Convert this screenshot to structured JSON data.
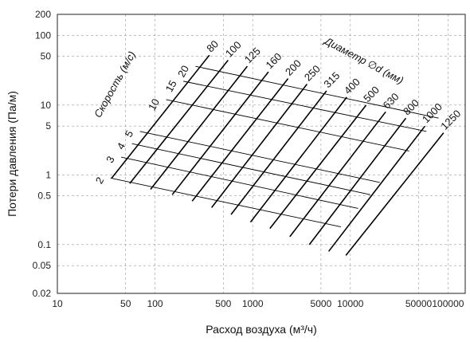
{
  "chart_data": {
    "type": "line",
    "xlabel": "Расход воздуха (м³/ч)",
    "ylabel": "Потери давления (Па/м)",
    "xscale": "log",
    "yscale": "log",
    "xlim": [
      10,
      150000
    ],
    "ylim": [
      0.02,
      200
    ],
    "grid": true,
    "x_ticks": [
      {
        "value": 10,
        "label": "10"
      },
      {
        "value": 50,
        "label": "50"
      },
      {
        "value": 100,
        "label": "100"
      },
      {
        "value": 500,
        "label": "500"
      },
      {
        "value": 1000,
        "label": "1000"
      },
      {
        "value": 5000,
        "label": "5000"
      },
      {
        "value": 10000,
        "label": "10000"
      },
      {
        "value": 50000,
        "label": "50000"
      },
      {
        "value": 100000,
        "label": "100000"
      }
    ],
    "y_ticks": [
      {
        "value": 0.02,
        "label": "0.02"
      },
      {
        "value": 0.05,
        "label": "0.05"
      },
      {
        "value": 0.1,
        "label": "0.1"
      },
      {
        "value": 0.5,
        "label": "0.5"
      },
      {
        "value": 1,
        "label": "1"
      },
      {
        "value": 5,
        "label": "5"
      },
      {
        "value": 10,
        "label": "10"
      },
      {
        "value": 50,
        "label": "50"
      },
      {
        "value": 100,
        "label": "100"
      },
      {
        "value": 200,
        "label": "200"
      }
    ],
    "velocity_title": "Скорость (м/с)",
    "diameter_title": "Диаметр ∅d (мм)",
    "velocity_lines": [
      {
        "label": "2",
        "start": [
          35,
          0.9
        ],
        "end": [
          8000,
          0.18
        ]
      },
      {
        "label": "3",
        "start": [
          45,
          1.8
        ],
        "end": [
          12000,
          0.33
        ]
      },
      {
        "label": "4",
        "start": [
          58,
          2.8
        ],
        "end": [
          16000,
          0.52
        ]
      },
      {
        "label": "5",
        "start": [
          70,
          4.2
        ],
        "end": [
          20000,
          0.78
        ]
      },
      {
        "label": "10",
        "start": [
          130,
          12
        ],
        "end": [
          40000,
          2.2
        ]
      },
      {
        "label": "15",
        "start": [
          195,
          22
        ],
        "end": [
          60000,
          4.2
        ]
      },
      {
        "label": "20",
        "start": [
          260,
          36
        ],
        "end": [
          80000,
          6.5
        ]
      }
    ],
    "diameter_lines": [
      {
        "label": "80",
        "start": [
          36,
          0.9
        ],
        "end": [
          360,
          52
        ]
      },
      {
        "label": "100",
        "start": [
          55,
          0.75
        ],
        "end": [
          560,
          44
        ]
      },
      {
        "label": "125",
        "start": [
          90,
          0.62
        ],
        "end": [
          880,
          36
        ]
      },
      {
        "label": "160",
        "start": [
          150,
          0.52
        ],
        "end": [
          1450,
          30
        ]
      },
      {
        "label": "200",
        "start": [
          240,
          0.42
        ],
        "end": [
          2300,
          24
        ]
      },
      {
        "label": "250",
        "start": [
          380,
          0.34
        ],
        "end": [
          3600,
          20
        ]
      },
      {
        "label": "315",
        "start": [
          600,
          0.27
        ],
        "end": [
          5700,
          16
        ]
      },
      {
        "label": "400",
        "start": [
          950,
          0.21
        ],
        "end": [
          9200,
          13
        ]
      },
      {
        "label": "500",
        "start": [
          1500,
          0.17
        ],
        "end": [
          14500,
          10
        ]
      },
      {
        "label": "630",
        "start": [
          2400,
          0.13
        ],
        "end": [
          23000,
          8
        ]
      },
      {
        "label": "800",
        "start": [
          3800,
          0.1
        ],
        "end": [
          37000,
          6.5
        ]
      },
      {
        "label": "1000",
        "start": [
          6000,
          0.08
        ],
        "end": [
          58000,
          5
        ]
      },
      {
        "label": "1250",
        "start": [
          9000,
          0.07
        ],
        "end": [
          90000,
          4
        ]
      }
    ]
  }
}
